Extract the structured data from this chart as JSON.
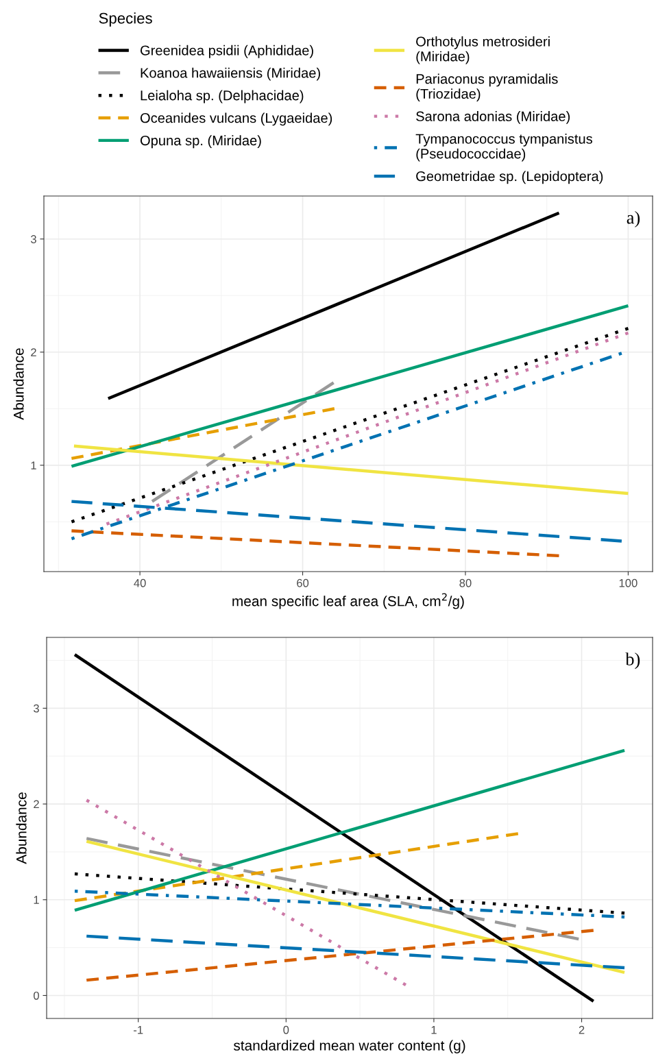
{
  "chart_data": [
    {
      "type": "line",
      "xlabel": "mean specific leaf area (SLA, cm$^{2}$/g)",
      "ylabel": "Abundance",
      "annotations": [
        "a)"
      ],
      "legend": "top",
      "legend_title": "Species",
      "grid": true,
      "xlim": [
        28.2,
        103.0
      ],
      "ylim": [
        0.06,
        3.38
      ],
      "xticks": [
        40,
        60,
        80,
        100
      ],
      "yticks": [
        1,
        2,
        3
      ],
      "series": [
        {
          "name": "Greenidea psidii (Aphididae)",
          "color": "#000000",
          "line_style": "solid",
          "x": [
            36.1,
            91.5
          ],
          "values": [
            1.59,
            3.23
          ]
        },
        {
          "name": "Koanoa hawaiiensis (Miridae)",
          "color": "#999999",
          "line_style": "longdash",
          "x": [
            41.5,
            63.8
          ],
          "values": [
            0.68,
            1.73
          ]
        },
        {
          "name": "Leialoha sp. (Delphacidae)",
          "color": "#000000",
          "line_style": "dotted",
          "x": [
            31.6,
            100
          ],
          "values": [
            0.5,
            2.21
          ]
        },
        {
          "name": "Oceanides vulcans (Lygaeidae)",
          "color": "#e69f00",
          "line_style": "dashed",
          "x": [
            31.6,
            63.9
          ],
          "values": [
            1.06,
            1.5
          ]
        },
        {
          "name": "Opuna sp. (Miridae)",
          "color": "#009e73",
          "line_style": "solid",
          "x": [
            31.6,
            100
          ],
          "values": [
            0.99,
            2.41
          ]
        },
        {
          "name": "Orthotylus metrosideri\n(Miridae)",
          "color": "#f0e442",
          "line_style": "solid",
          "x": [
            31.9,
            100
          ],
          "values": [
            1.17,
            0.75
          ]
        },
        {
          "name": "Pariaconus pyramidalis\n(Triozidae)",
          "color": "#d55e00",
          "line_style": "dashed",
          "x": [
            31.6,
            91.5
          ],
          "values": [
            0.42,
            0.2
          ]
        },
        {
          "name": "Sarona adonias (Miridae)",
          "color": "#cc79a7",
          "line_style": "dotted",
          "x": [
            35.9,
            100
          ],
          "values": [
            0.48,
            2.17
          ]
        },
        {
          "name": "Tympanococcus tympanistus\n(Pseudococcidae)",
          "color": "#0072b2",
          "line_style": "dashdot",
          "x": [
            31.6,
            99.2
          ],
          "values": [
            0.35,
            1.99
          ]
        },
        {
          "name": "Geometridae sp. (Lepidoptera)",
          "color": "#0072b2",
          "line_style": "longdash",
          "x": [
            31.6,
            99.2
          ],
          "values": [
            0.68,
            0.33
          ]
        }
      ]
    },
    {
      "type": "line",
      "xlabel": "standardized mean water content (g)",
      "ylabel": "Abundance",
      "annotations": [
        "b)"
      ],
      "grid": true,
      "xlim": [
        -1.62,
        2.48
      ],
      "ylim": [
        -0.24,
        3.74
      ],
      "xticks": [
        {
          "value": -1,
          "label": "-1"
        },
        0,
        1,
        2
      ],
      "yticks": [
        0,
        1,
        2,
        3
      ],
      "series": [
        {
          "color": "#000000",
          "line_style": "solid",
          "x": [
            -1.43,
            2.08
          ],
          "values": [
            3.56,
            -0.06
          ]
        },
        {
          "color": "#999999",
          "line_style": "longdash",
          "x": [
            -1.35,
            1.98
          ],
          "values": [
            1.64,
            0.59
          ]
        },
        {
          "color": "#000000",
          "line_style": "dotted",
          "x": [
            -1.43,
            2.29
          ],
          "values": [
            1.27,
            0.86
          ]
        },
        {
          "color": "#e69f00",
          "line_style": "dashed",
          "x": [
            -1.43,
            1.57
          ],
          "values": [
            0.99,
            1.69
          ]
        },
        {
          "color": "#009e73",
          "line_style": "solid",
          "x": [
            -1.43,
            2.29
          ],
          "values": [
            0.89,
            2.56
          ]
        },
        {
          "color": "#f0e442",
          "line_style": "solid",
          "x": [
            -1.35,
            2.29
          ],
          "values": [
            1.61,
            0.24
          ]
        },
        {
          "color": "#d55e00",
          "line_style": "dashed",
          "x": [
            -1.35,
            2.08
          ],
          "values": [
            0.16,
            0.68
          ]
        },
        {
          "color": "#cc79a7",
          "line_style": "dotted",
          "x": [
            -1.35,
            0.81
          ],
          "values": [
            2.04,
            0.11
          ]
        },
        {
          "color": "#0072b2",
          "line_style": "dashdot",
          "x": [
            -1.43,
            2.29
          ],
          "values": [
            1.09,
            0.82
          ]
        },
        {
          "color": "#0072b2",
          "line_style": "longdash",
          "x": [
            -1.35,
            2.29
          ],
          "values": [
            0.62,
            0.29
          ]
        }
      ]
    }
  ]
}
